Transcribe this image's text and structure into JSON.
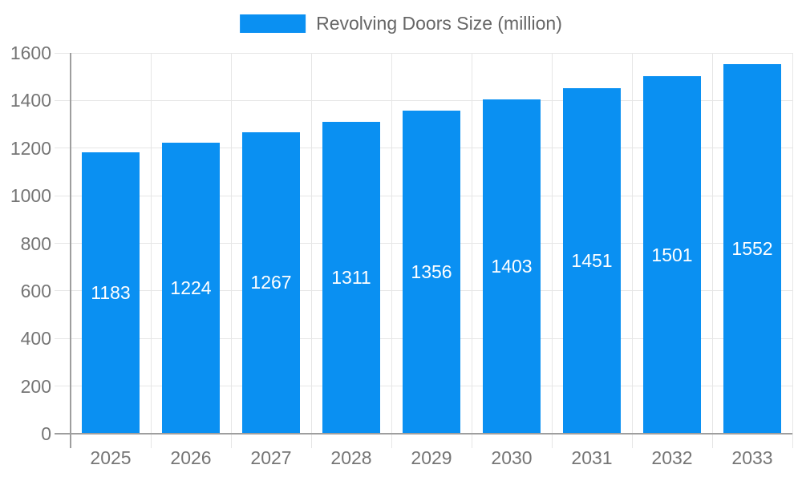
{
  "legend": {
    "label": "Revolving Doors Size (million)"
  },
  "chart_data": {
    "type": "bar",
    "title": "Revolving Doors Size (million)",
    "categories": [
      "2025",
      "2026",
      "2027",
      "2028",
      "2029",
      "2030",
      "2031",
      "2032",
      "2033"
    ],
    "series": [
      {
        "name": "Revolving Doors Size (million)",
        "values": [
          1183,
          1224,
          1267,
          1311,
          1356,
          1403,
          1451,
          1501,
          1552
        ]
      }
    ],
    "xlabel": "",
    "ylabel": "",
    "ylim": [
      0,
      1600
    ],
    "yticks": [
      0,
      200,
      400,
      600,
      800,
      1000,
      1200,
      1400,
      1600
    ],
    "grid": true,
    "legend_position": "top",
    "value_labels": "inside-center"
  },
  "colors": {
    "bar": "#0a90f2",
    "axis": "#9e9e9e",
    "gridline": "#e6e6e6",
    "tick_text": "#757575",
    "legend_text": "#666666",
    "value_label_text": "#ffffff",
    "background": "#ffffff"
  }
}
